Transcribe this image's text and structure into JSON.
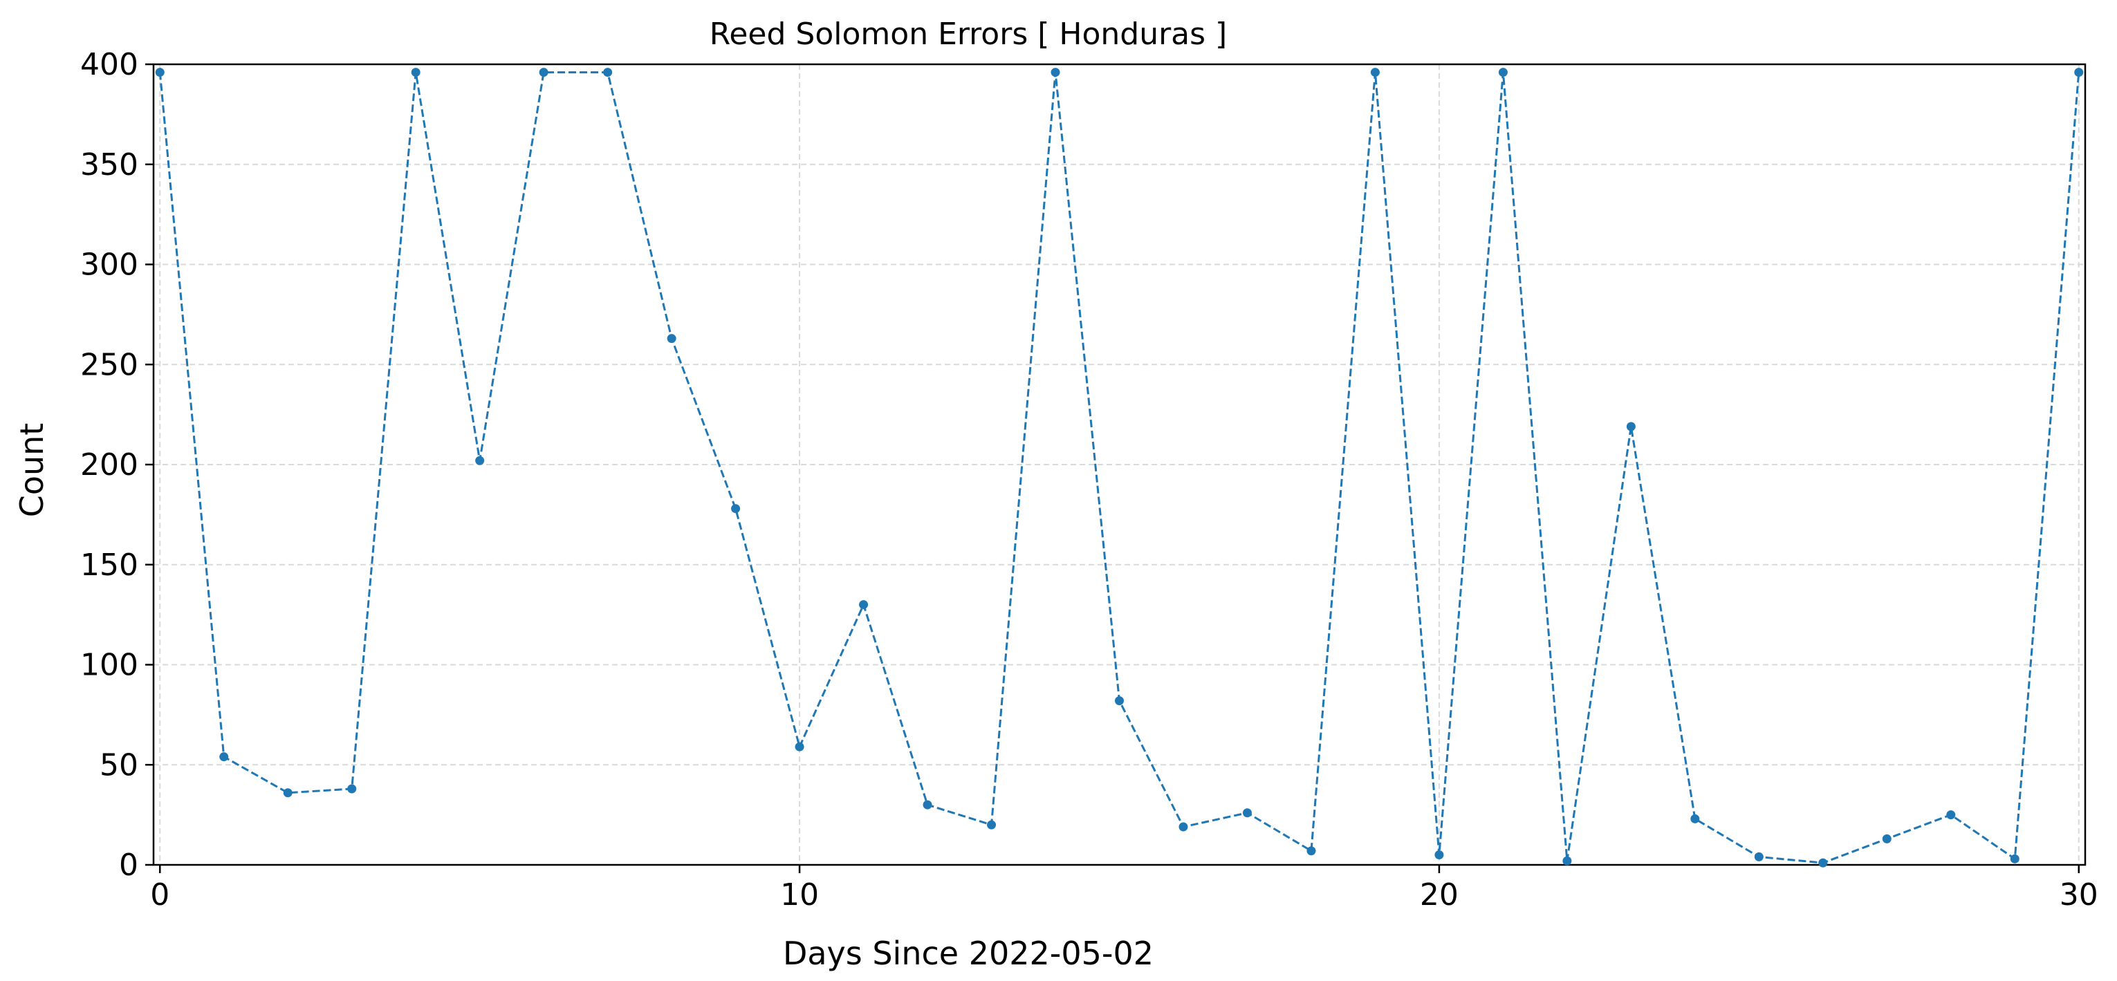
{
  "chart_data": {
    "type": "line",
    "title": "Reed Solomon Errors [ Honduras ]",
    "xlabel": "Days Since 2022-05-02",
    "ylabel": "Count",
    "xlim": [
      -0.1,
      30.1
    ],
    "ylim": [
      0,
      400
    ],
    "xticks": [
      0,
      10,
      20,
      30
    ],
    "yticks": [
      0,
      50,
      100,
      150,
      200,
      250,
      300,
      350,
      400
    ],
    "grid": true,
    "line_style": "dashed",
    "marker": "circle",
    "series_color": "#1f77b4",
    "grid_color": "#d9d9d9",
    "series": [
      {
        "x": [
          0,
          1,
          2,
          3,
          4,
          5,
          6,
          7,
          8,
          9,
          10,
          11,
          12,
          13,
          14,
          15,
          16,
          17,
          18,
          19,
          20,
          21,
          22,
          23,
          24,
          25,
          26,
          27,
          28,
          29,
          30
        ],
        "values": [
          396,
          54,
          36,
          38,
          396,
          202,
          396,
          396,
          263,
          178,
          59,
          130,
          30,
          20,
          396,
          82,
          19,
          26,
          7,
          396,
          5,
          396,
          2,
          219,
          23,
          4,
          1,
          13,
          25,
          3,
          396
        ]
      }
    ]
  }
}
